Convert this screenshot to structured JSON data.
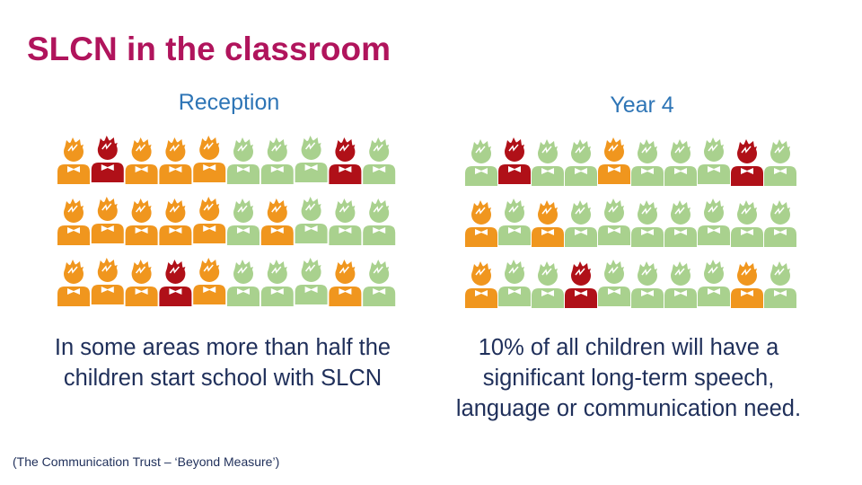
{
  "title": "SLCN in the classroom",
  "panels": [
    {
      "heading": "Reception",
      "caption": "In some areas more than half the children start school with SLCN",
      "icons": [
        [
          "#f0961e",
          "#b01018",
          "#f0961e",
          "#f0961e",
          "#f0961e",
          "#a9d18e",
          "#a9d18e",
          "#a9d18e",
          "#b01018",
          "#a9d18e"
        ],
        [
          "#f0961e",
          "#f0961e",
          "#f0961e",
          "#f0961e",
          "#f0961e",
          "#a9d18e",
          "#f0961e",
          "#a9d18e",
          "#a9d18e",
          "#a9d18e"
        ],
        [
          "#f0961e",
          "#f0961e",
          "#f0961e",
          "#b01018",
          "#f0961e",
          "#a9d18e",
          "#a9d18e",
          "#a9d18e",
          "#f0961e",
          "#a9d18e"
        ]
      ]
    },
    {
      "heading": "Year 4",
      "caption": "10% of all children will have a significant long-term speech, language or communication need.",
      "icons": [
        [
          "#a9d18e",
          "#b01018",
          "#a9d18e",
          "#a9d18e",
          "#f0961e",
          "#a9d18e",
          "#a9d18e",
          "#a9d18e",
          "#b01018",
          "#a9d18e"
        ],
        [
          "#f0961e",
          "#a9d18e",
          "#f0961e",
          "#a9d18e",
          "#a9d18e",
          "#a9d18e",
          "#a9d18e",
          "#a9d18e",
          "#a9d18e",
          "#a9d18e"
        ],
        [
          "#f0961e",
          "#a9d18e",
          "#a9d18e",
          "#b01018",
          "#a9d18e",
          "#a9d18e",
          "#a9d18e",
          "#a9d18e",
          "#f0961e",
          "#a9d18e"
        ]
      ]
    }
  ],
  "source": "(The Communication Trust – ‘Beyond Measure’)"
}
